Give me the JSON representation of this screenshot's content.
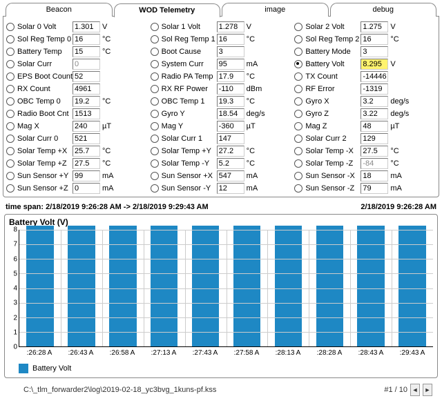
{
  "tabs": [
    "Beacon",
    "WOD Telemetry",
    "image",
    "debug"
  ],
  "active_tab": 1,
  "selected_param": "Battery Volt",
  "columns": [
    [
      {
        "label": "Solar 0 Volt",
        "value": "1.301",
        "unit": "V"
      },
      {
        "label": "Sol Reg Temp 0",
        "value": "16",
        "unit": "°C"
      },
      {
        "label": "Battery Temp",
        "value": "15",
        "unit": "°C"
      },
      {
        "label": "Solar Curr",
        "value": "0",
        "unit": "",
        "gray": true
      },
      {
        "label": "EPS Boot Count",
        "value": "52",
        "unit": ""
      },
      {
        "label": "RX Count",
        "value": "4961",
        "unit": ""
      },
      {
        "label": "OBC Temp 0",
        "value": "19.2",
        "unit": "°C"
      },
      {
        "label": "Radio Boot Cnt",
        "value": "1513",
        "unit": ""
      },
      {
        "label": "Mag X",
        "value": "240",
        "unit": "µT"
      },
      {
        "label": "Solar Curr 0",
        "value": "521",
        "unit": ""
      },
      {
        "label": "Solar Temp +X",
        "value": "25.7",
        "unit": "°C"
      },
      {
        "label": "Solar Temp +Z",
        "value": "27.5",
        "unit": "°C"
      },
      {
        "label": "Sun Sensor +Y",
        "value": "99",
        "unit": "mA"
      },
      {
        "label": "Sun Sensor +Z",
        "value": "0",
        "unit": "mA"
      }
    ],
    [
      {
        "label": "Solar 1 Volt",
        "value": "1.278",
        "unit": "V"
      },
      {
        "label": "Sol Reg Temp 1",
        "value": "16",
        "unit": "°C"
      },
      {
        "label": "Boot Cause",
        "value": "3",
        "unit": ""
      },
      {
        "label": "System Curr",
        "value": "95",
        "unit": "mA"
      },
      {
        "label": "Radio PA Temp",
        "value": "17.9",
        "unit": "°C"
      },
      {
        "label": "RX RF Power",
        "value": "-110",
        "unit": "dBm"
      },
      {
        "label": "OBC Temp 1",
        "value": "19.3",
        "unit": "°C"
      },
      {
        "label": "Gyro Y",
        "value": "18.54",
        "unit": "deg/s"
      },
      {
        "label": "Mag Y",
        "value": "-360",
        "unit": "µT"
      },
      {
        "label": "Solar Curr 1",
        "value": "147",
        "unit": ""
      },
      {
        "label": "Solar Temp +Y",
        "value": "27.2",
        "unit": "°C"
      },
      {
        "label": "Solar Temp -Y",
        "value": "5.2",
        "unit": "°C"
      },
      {
        "label": "Sun Sensor +X",
        "value": "547",
        "unit": "mA"
      },
      {
        "label": "Sun Sensor -Y",
        "value": "12",
        "unit": "mA"
      }
    ],
    [
      {
        "label": "Solar 2 Volt",
        "value": "1.275",
        "unit": "V"
      },
      {
        "label": "Sol Reg Temp 2",
        "value": "16",
        "unit": "°C"
      },
      {
        "label": "Battery Mode",
        "value": "3",
        "unit": ""
      },
      {
        "label": "Battery Volt",
        "value": "8.295",
        "unit": "V",
        "hl": true,
        "sel": true
      },
      {
        "label": "TX Count",
        "value": "-14446",
        "unit": ""
      },
      {
        "label": "RF Error",
        "value": "-1319",
        "unit": ""
      },
      {
        "label": "Gyro X",
        "value": "3.2",
        "unit": "deg/s"
      },
      {
        "label": "Gyro Z",
        "value": "3.22",
        "unit": "deg/s"
      },
      {
        "label": "Mag Z",
        "value": "48",
        "unit": "µT"
      },
      {
        "label": "Solar Curr 2",
        "value": "129",
        "unit": ""
      },
      {
        "label": "Solar Temp -X",
        "value": "27.5",
        "unit": "°C"
      },
      {
        "label": "Solar Temp -Z",
        "value": "-84",
        "unit": "°C",
        "gray": true
      },
      {
        "label": "Sun Sensor -X",
        "value": "18",
        "unit": "mA"
      },
      {
        "label": "Sun Sensor -Z",
        "value": "79",
        "unit": "mA"
      }
    ]
  ],
  "timespan_label": "time span:",
  "timespan_value": "2/18/2019 9:26:28 AM  ->  2/18/2019 9:29:43 AM",
  "timestamp": "2/18/2019 9:26:28 AM",
  "chart": {
    "title": "Battery Volt (V)",
    "ymax": 8,
    "yticks": [
      0,
      1,
      2,
      3,
      4,
      5,
      6,
      7,
      8
    ],
    "grid_color": "#cccccc",
    "bar_color": "#1e88c4",
    "bg_color": "#ffffff",
    "categories": [
      ":26:28 A",
      ":26:43 A",
      ":26:58 A",
      ":27:13 A",
      ":27:43 A",
      ":27:58 A",
      ":28:13 A",
      ":28:28 A",
      ":28:43 A",
      ":29:43 A"
    ],
    "values": [
      8.295,
      8.295,
      8.295,
      8.295,
      8.295,
      8.295,
      8.295,
      8.295,
      8.295,
      8.295
    ],
    "legend": "Battery Volt"
  },
  "filepath": "C:\\_tlm_forwarder2\\log\\2019-02-18_yc3bvg_1kuns-pf.kss",
  "pager": {
    "page": "#1 / 10"
  }
}
